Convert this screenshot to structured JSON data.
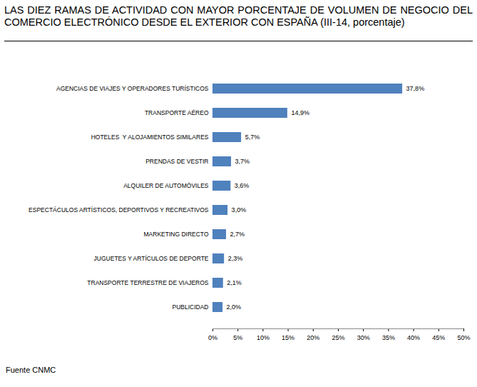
{
  "chart_data": {
    "type": "bar",
    "orientation": "horizontal",
    "title": "LAS DIEZ RAMAS DE ACTIVIDAD CON MAYOR PORCENTAJE DE VOLUMEN DE NEGOCIO DEL COMERCIO ELECTRÓNICO DESDE EL EXTERIOR CON ESPAÑA (III-14, porcentaje)",
    "source": "Fuente CNMC",
    "categories": [
      "AGENCIAS DE VIAJES Y OPERADORES TURÍSTICOS",
      "TRANSPORTE AÉREO",
      "HOTELES  Y ALOJAMIENTOS SIMILARES",
      "PRENDAS DE VESTIR",
      "ALQUILER DE AUTOMÓVILES",
      "ESPECTÁCULOS ARTÍSTICOS, DEPORTIVOS Y RECREATIVOS",
      "MARKETING DIRECTO",
      "JUGUETES Y ARTÍCULOS DE DEPORTE",
      "TRANSPORTE TERRESTRE DE VIAJEROS",
      "PUBLICIDAD"
    ],
    "values": [
      37.8,
      14.9,
      5.7,
      3.7,
      3.6,
      3.0,
      2.7,
      2.3,
      2.1,
      2.0
    ],
    "value_labels": [
      "37,8%",
      "14,9%",
      "5,7%",
      "3,7%",
      "3,6%",
      "3,0%",
      "2,7%",
      "2,3%",
      "2,1%",
      "2,0%"
    ],
    "data_labels": true,
    "color": "#4f81bd",
    "xlim": [
      0,
      50
    ],
    "xticks": [
      {
        "value": 0,
        "label": "0%"
      },
      {
        "value": 5,
        "label": "5%"
      },
      {
        "value": 10,
        "label": "10%"
      },
      {
        "value": 15,
        "label": "15%"
      },
      {
        "value": 20,
        "label": "20%"
      },
      {
        "value": 25,
        "label": "25%"
      },
      {
        "value": 30,
        "label": "30%"
      },
      {
        "value": 35,
        "label": "35%"
      },
      {
        "value": 40,
        "label": "40%"
      },
      {
        "value": 45,
        "label": "45%"
      },
      {
        "value": 50,
        "label": "50%"
      }
    ],
    "grid": false
  }
}
